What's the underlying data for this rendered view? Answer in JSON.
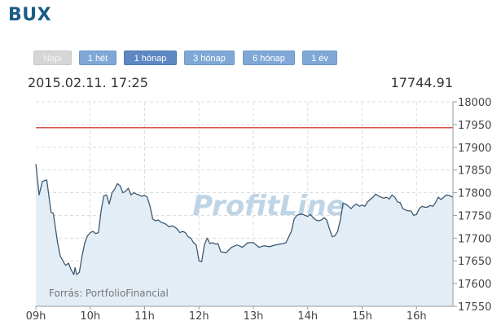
{
  "header": {
    "title": "BUX"
  },
  "range_buttons": [
    {
      "label": "Napi",
      "state": "disabled"
    },
    {
      "label": "1 hét",
      "state": "normal"
    },
    {
      "label": "1 hónap",
      "state": "selected"
    },
    {
      "label": "3 hónap",
      "state": "normal"
    },
    {
      "label": "6 hónap",
      "state": "normal"
    },
    {
      "label": "1 év",
      "state": "normal"
    }
  ],
  "info": {
    "datetime": "2015.02.11. 17:25",
    "value": "17744.91"
  },
  "watermark": "ProfitLine",
  "source": "Forrás: PortfolioFinancial",
  "colors": {
    "brand": "#1b5c86",
    "button": "#7fa8d6",
    "line": "#3e5a72",
    "area": "#e3edf6",
    "reference": "#d9534f",
    "grid": "#dddddd"
  },
  "chart_data": {
    "type": "area",
    "x_tick_labels": [
      "09h",
      "10h",
      "11h",
      "12h",
      "13h",
      "14h",
      "15h",
      "16h"
    ],
    "y_tick_labels": [
      "17550",
      "17600",
      "17650",
      "17700",
      "17750",
      "17800",
      "17850",
      "17900",
      "17950",
      "18000"
    ],
    "ylim": [
      17550,
      18000
    ],
    "xlim": [
      9.0,
      16.67
    ],
    "reference_line": 17943,
    "grid": true,
    "series": [
      {
        "x": [
          9.0,
          9.06,
          9.12,
          9.2,
          9.28,
          9.32,
          9.4,
          9.45,
          9.5,
          9.52,
          9.55,
          9.6,
          9.65,
          9.7,
          9.72,
          9.75,
          9.8,
          9.85,
          9.9,
          9.95,
          10.0,
          10.05,
          10.1,
          10.15,
          10.2,
          10.25,
          10.3,
          10.35,
          10.4,
          10.45,
          10.5,
          10.55,
          10.6,
          10.65,
          10.7,
          10.75,
          10.8,
          10.85,
          10.9,
          10.95,
          11.0,
          11.05,
          11.1,
          11.15,
          11.2,
          11.25,
          11.3,
          11.35,
          11.4,
          11.45,
          11.5,
          11.55,
          11.6,
          11.65,
          11.7,
          11.75,
          11.8,
          11.85,
          11.9,
          11.95,
          12.0,
          12.05,
          12.1,
          12.15,
          12.2,
          12.25,
          12.3,
          12.35,
          12.4,
          12.5,
          12.6,
          12.7,
          12.8,
          12.9,
          13.0,
          13.1,
          13.2,
          13.3,
          13.4,
          13.5,
          13.6,
          13.7,
          13.75,
          13.8,
          13.85,
          13.9,
          13.95,
          14.0,
          14.05,
          14.1,
          14.15,
          14.2,
          14.25,
          14.3,
          14.35,
          14.4,
          14.45,
          14.5,
          14.55,
          14.6,
          14.65,
          14.7,
          14.75,
          14.8,
          14.85,
          14.9,
          14.95,
          15.0,
          15.05,
          15.1,
          15.15,
          15.2,
          15.25,
          15.3,
          15.35,
          15.4,
          15.45,
          15.5,
          15.55,
          15.6,
          15.65,
          15.7,
          15.75,
          15.8,
          15.85,
          15.9,
          15.95,
          16.0,
          16.05,
          16.1,
          16.15,
          16.2,
          16.25,
          16.3,
          16.35,
          16.4,
          16.45,
          16.5,
          16.55,
          16.6,
          16.67
        ],
        "values": [
          17863,
          17795,
          17825,
          17828,
          17757,
          17755,
          17690,
          17660,
          17650,
          17645,
          17640,
          17645,
          17630,
          17620,
          17635,
          17620,
          17625,
          17660,
          17690,
          17705,
          17712,
          17715,
          17710,
          17712,
          17760,
          17793,
          17795,
          17775,
          17800,
          17808,
          17820,
          17815,
          17800,
          17803,
          17810,
          17795,
          17800,
          17797,
          17795,
          17792,
          17794,
          17790,
          17770,
          17742,
          17738,
          17740,
          17735,
          17733,
          17730,
          17725,
          17727,
          17725,
          17720,
          17712,
          17715,
          17712,
          17703,
          17700,
          17690,
          17685,
          17650,
          17648,
          17685,
          17700,
          17688,
          17690,
          17687,
          17688,
          17670,
          17668,
          17680,
          17685,
          17680,
          17690,
          17690,
          17680,
          17683,
          17681,
          17685,
          17687,
          17690,
          17715,
          17742,
          17750,
          17752,
          17753,
          17750,
          17748,
          17752,
          17745,
          17740,
          17738,
          17740,
          17745,
          17740,
          17720,
          17703,
          17705,
          17715,
          17740,
          17777,
          17775,
          17770,
          17765,
          17772,
          17775,
          17770,
          17773,
          17770,
          17780,
          17785,
          17790,
          17797,
          17793,
          17790,
          17788,
          17790,
          17786,
          17795,
          17790,
          17780,
          17778,
          17765,
          17762,
          17760,
          17760,
          17750,
          17752,
          17765,
          17770,
          17768,
          17768,
          17772,
          17770,
          17778,
          17790,
          17785,
          17790,
          17795,
          17794,
          17790
        ]
      }
    ]
  }
}
